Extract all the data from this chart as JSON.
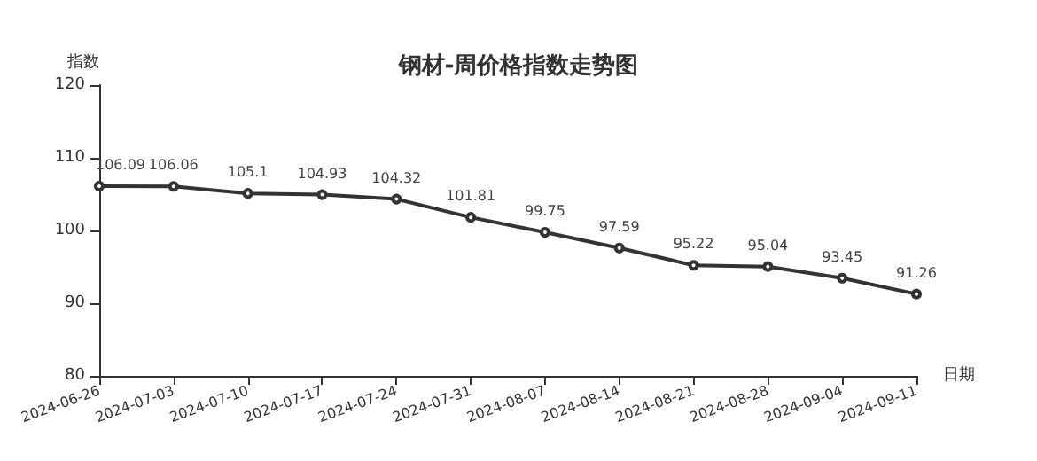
{
  "chart_data": {
    "type": "line",
    "title": "钢材-周价格指数走势图",
    "xlabel": "日期",
    "ylabel": "指数",
    "categories": [
      "2024-06-26",
      "2024-07-03",
      "2024-07-10",
      "2024-07-17",
      "2024-07-24",
      "2024-07-31",
      "2024-08-07",
      "2024-08-14",
      "2024-08-21",
      "2024-08-28",
      "2024-09-04",
      "2024-09-11"
    ],
    "series": [
      {
        "color": "#333333",
        "values": [
          106.09,
          106.06,
          105.1,
          104.93,
          104.32,
          101.81,
          99.75,
          97.59,
          95.22,
          95.04,
          93.45,
          91.26
        ]
      }
    ],
    "ylim": [
      80,
      120
    ],
    "yticks": [
      80,
      90,
      100,
      110,
      120
    ],
    "grid": false,
    "marker": "circle",
    "line_style": "solid",
    "data_labels": true
  }
}
